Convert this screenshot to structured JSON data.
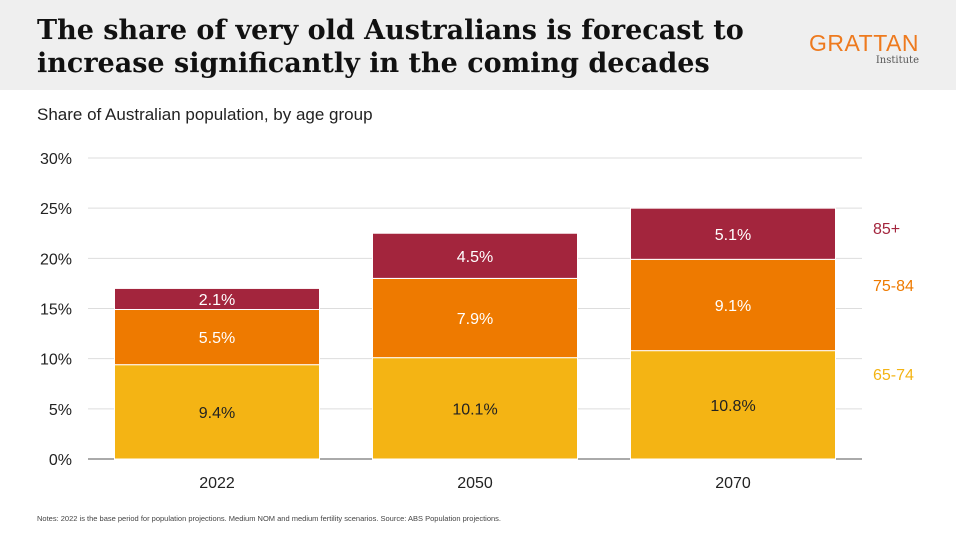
{
  "header": {
    "title": "The share of very old Australians is forecast to increase significantly in the coming decades",
    "logo_main": "GRATTAN",
    "logo_sub": "Institute"
  },
  "subtitle": "Share of Australian population, by age group",
  "notes": "Notes: 2022 is the base period for population projections. Medium NOM and medium fertility scenarios. Source: ABS Population projections.",
  "colors": {
    "65-74": "#f4b414",
    "75-84": "#ee7a00",
    "85+": "#a3253d"
  },
  "chart_data": {
    "type": "bar",
    "stacked": true,
    "categories": [
      "2022",
      "2050",
      "2070"
    ],
    "series": [
      {
        "name": "65-74",
        "values": [
          9.4,
          10.1,
          10.8
        ],
        "labels": [
          "9.4%",
          "10.1%",
          "10.8%"
        ]
      },
      {
        "name": "75-84",
        "values": [
          5.5,
          7.9,
          9.1
        ],
        "labels": [
          "5.5%",
          "7.9%",
          "9.1%"
        ]
      },
      {
        "name": "85+",
        "values": [
          2.1,
          4.5,
          5.1
        ],
        "labels": [
          "2.1%",
          "4.5%",
          "5.1%"
        ]
      }
    ],
    "ylim": [
      0,
      30
    ],
    "yticks": [
      0,
      5,
      10,
      15,
      20,
      25,
      30
    ],
    "ytick_labels": [
      "0%",
      "5%",
      "10%",
      "15%",
      "20%",
      "25%",
      "30%"
    ],
    "grid": true,
    "legend_placement": "right, inline"
  }
}
